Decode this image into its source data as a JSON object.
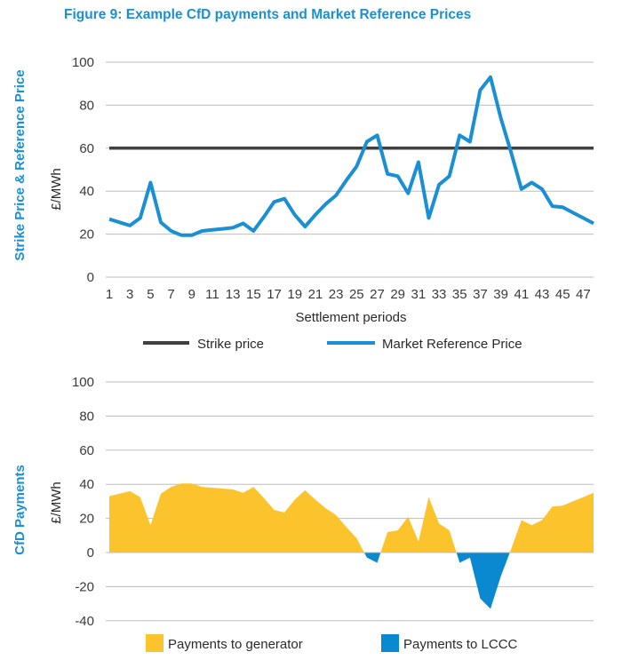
{
  "figure_title": "Figure 9: Example CfD payments and Market Reference Prices",
  "chart_data": [
    {
      "type": "line",
      "side_label": "Strike Price & Reference Price",
      "ylabel": "£/MWh",
      "xlabel": "Settlement periods",
      "ylim": [
        0,
        100
      ],
      "yticks": [
        0,
        20,
        40,
        60,
        80,
        100
      ],
      "xtick_labels": [
        "1",
        "3",
        "5",
        "7",
        "9",
        "11",
        "13",
        "15",
        "17",
        "19",
        "21",
        "23",
        "25",
        "27",
        "29",
        "31",
        "33",
        "35",
        "37",
        "39",
        "41",
        "43",
        "45",
        "47"
      ],
      "x": [
        1,
        2,
        3,
        4,
        5,
        6,
        7,
        8,
        9,
        10,
        11,
        12,
        13,
        14,
        15,
        16,
        17,
        18,
        19,
        20,
        21,
        22,
        23,
        24,
        25,
        26,
        27,
        28,
        29,
        30,
        31,
        32,
        33,
        34,
        35,
        36,
        37,
        38,
        39,
        40,
        41,
        42,
        43,
        44,
        45,
        46,
        47,
        48
      ],
      "series": [
        {
          "name": "Strike price",
          "color": "#404040",
          "values": [
            60,
            60,
            60,
            60,
            60,
            60,
            60,
            60,
            60,
            60,
            60,
            60,
            60,
            60,
            60,
            60,
            60,
            60,
            60,
            60,
            60,
            60,
            60,
            60,
            60,
            60,
            60,
            60,
            60,
            60,
            60,
            60,
            60,
            60,
            60,
            60,
            60,
            60,
            60,
            60,
            60,
            60,
            60,
            60,
            60,
            60,
            60,
            60
          ]
        },
        {
          "name": "Market Reference Price",
          "color": "#1a8fd3",
          "values": [
            27,
            25.5,
            24,
            27.5,
            44,
            25.5,
            21.5,
            19.5,
            19.5,
            21.5,
            22,
            22.5,
            23,
            25,
            21.5,
            28,
            35,
            36.5,
            29,
            23.5,
            29,
            34,
            38,
            45,
            51.5,
            63,
            66,
            48,
            47,
            39,
            53.5,
            27.5,
            43,
            47,
            66,
            63,
            87,
            93,
            74,
            58,
            41,
            44,
            41,
            33,
            32.5,
            30,
            27.5,
            25
          ]
        }
      ]
    },
    {
      "type": "area",
      "side_label": "CfD Payments",
      "ylabel": "£/MWh",
      "ylim": [
        -40,
        100
      ],
      "yticks": [
        -40,
        -20,
        0,
        20,
        40,
        60,
        80,
        100
      ],
      "x": [
        1,
        2,
        3,
        4,
        5,
        6,
        7,
        8,
        9,
        10,
        11,
        12,
        13,
        14,
        15,
        16,
        17,
        18,
        19,
        20,
        21,
        22,
        23,
        24,
        25,
        26,
        27,
        28,
        29,
        30,
        31,
        32,
        33,
        34,
        35,
        36,
        37,
        38,
        39,
        40,
        41,
        42,
        43,
        44,
        45,
        46,
        47,
        48
      ],
      "series": [
        {
          "name": "CfD payment",
          "values": [
            33,
            34.5,
            36,
            32.5,
            16,
            34.5,
            38.5,
            40.5,
            40.5,
            38.5,
            38,
            37.5,
            37,
            35,
            38.5,
            32,
            25,
            23.5,
            31,
            36.5,
            31,
            26,
            22,
            15,
            8.5,
            -3,
            -6,
            12,
            13,
            21,
            6.5,
            32.5,
            17,
            13,
            -6,
            -3,
            -27,
            -33,
            -14,
            2,
            19,
            16,
            19,
            27,
            27.5,
            30,
            32.5,
            35
          ]
        }
      ],
      "legend": [
        {
          "name": "Payments to generator",
          "color": "#fcc42c"
        },
        {
          "name": "Payments to LCCC",
          "color": "#0a89d1"
        }
      ]
    }
  ]
}
